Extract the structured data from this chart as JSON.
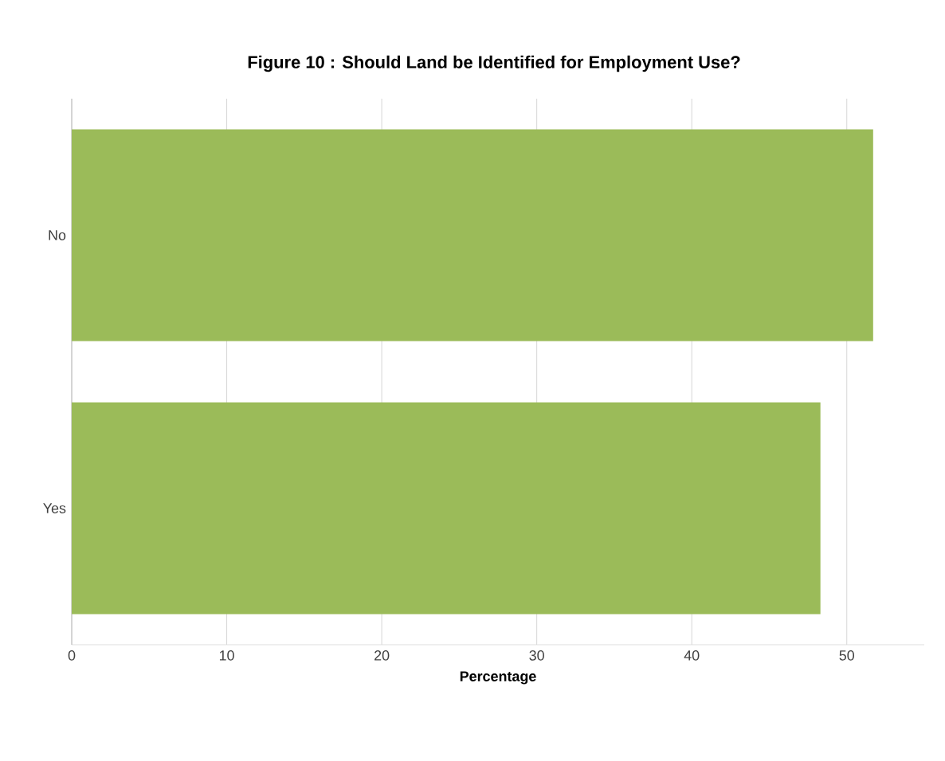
{
  "chart_data": {
    "type": "bar",
    "orientation": "horizontal",
    "title": "Figure 10  :  Should Land be Identified for Employment Use?",
    "xlabel": "Percentage",
    "categories": [
      "No",
      "Yes"
    ],
    "values": [
      51.7,
      48.3
    ],
    "color": "#9bbb59",
    "xlim": [
      0,
      55
    ],
    "xticks": [
      0,
      10,
      20,
      30,
      40,
      50
    ],
    "grid": "x"
  }
}
